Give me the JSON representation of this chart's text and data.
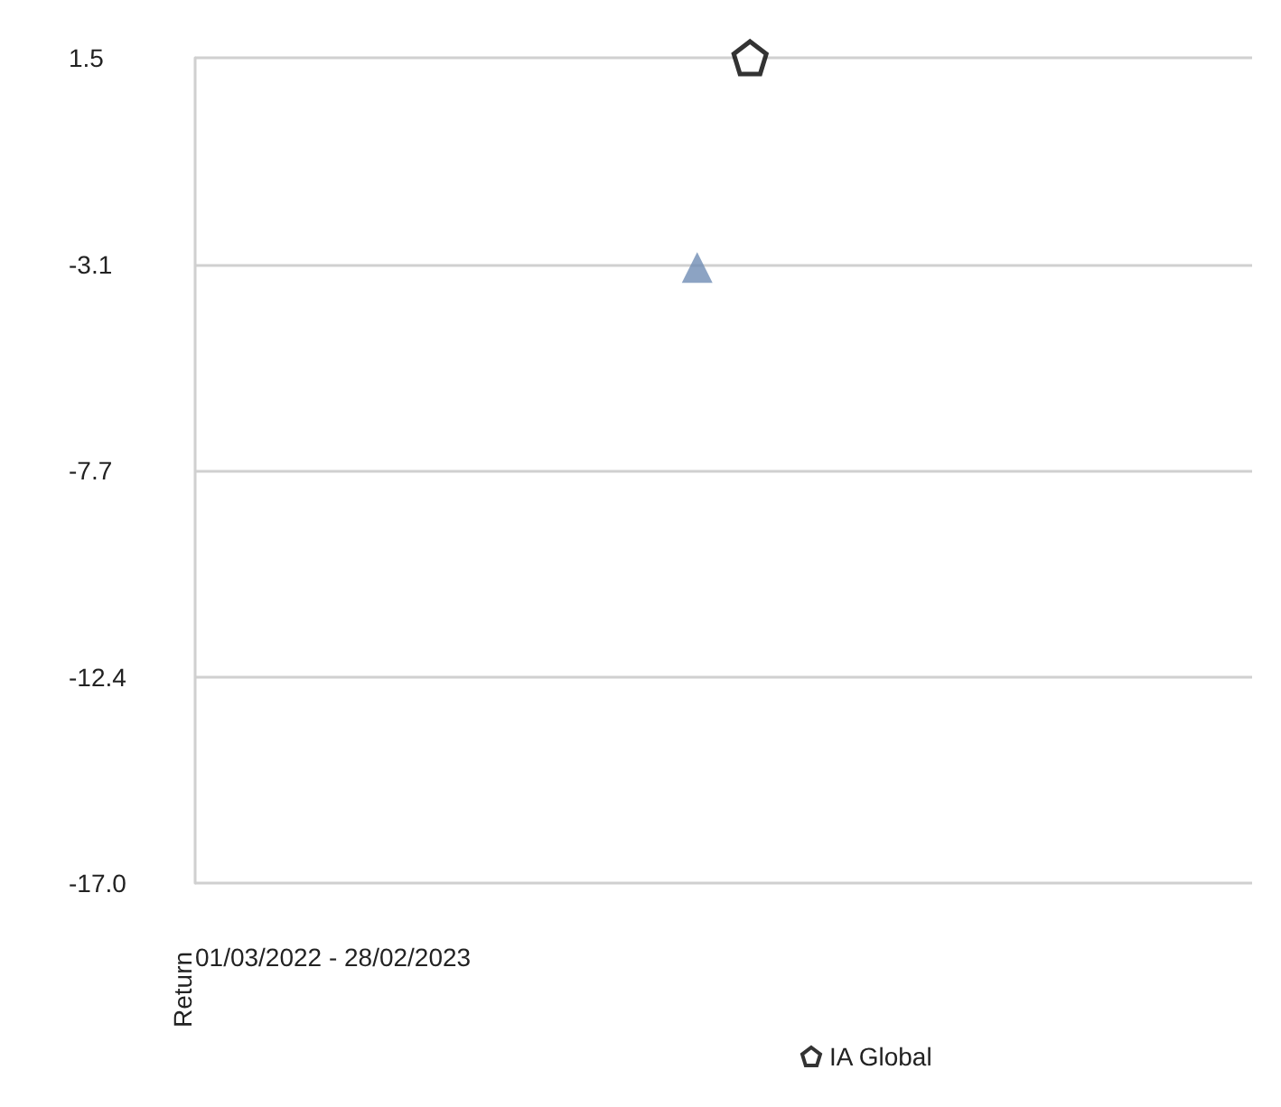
{
  "chart_data": {
    "type": "scatter",
    "ylabel": "Return",
    "annotations": [
      "01/03/2022 - 28/02/2023"
    ],
    "categories": [
      null,
      null,
      null,
      null,
      null,
      null,
      null,
      null,
      null,
      null,
      null,
      null,
      null,
      null,
      null,
      null,
      null,
      null,
      null,
      null
    ],
    "series": [
      {
        "color": "#6f8cb4",
        "marker": "triangle",
        "values": [
          null,
          null,
          null,
          null,
          null,
          null,
          null,
          null,
          null,
          -3.2,
          null,
          null,
          null,
          null,
          null,
          null,
          null,
          null,
          null,
          null
        ]
      },
      {
        "name": "IA Global",
        "color": "#000000",
        "values": [
          null,
          null,
          null,
          null,
          null,
          null,
          null,
          null,
          null,
          null,
          1.5,
          null,
          null,
          null,
          null,
          null,
          null,
          null,
          null,
          null
        ]
      }
    ],
    "ylim": [
      -17.0,
      1.5
    ],
    "yticks": [
      {
        "value": -17.0,
        "label": "-17.0"
      },
      {
        "value": -12.375,
        "label": "-12.4"
      },
      {
        "value": -7.75,
        "label": "-7.7"
      },
      {
        "value": -3.125,
        "label": "-3.1"
      },
      1.5
    ],
    "grid": "y",
    "legend": "bottom",
    "tick_labels": "y"
  }
}
